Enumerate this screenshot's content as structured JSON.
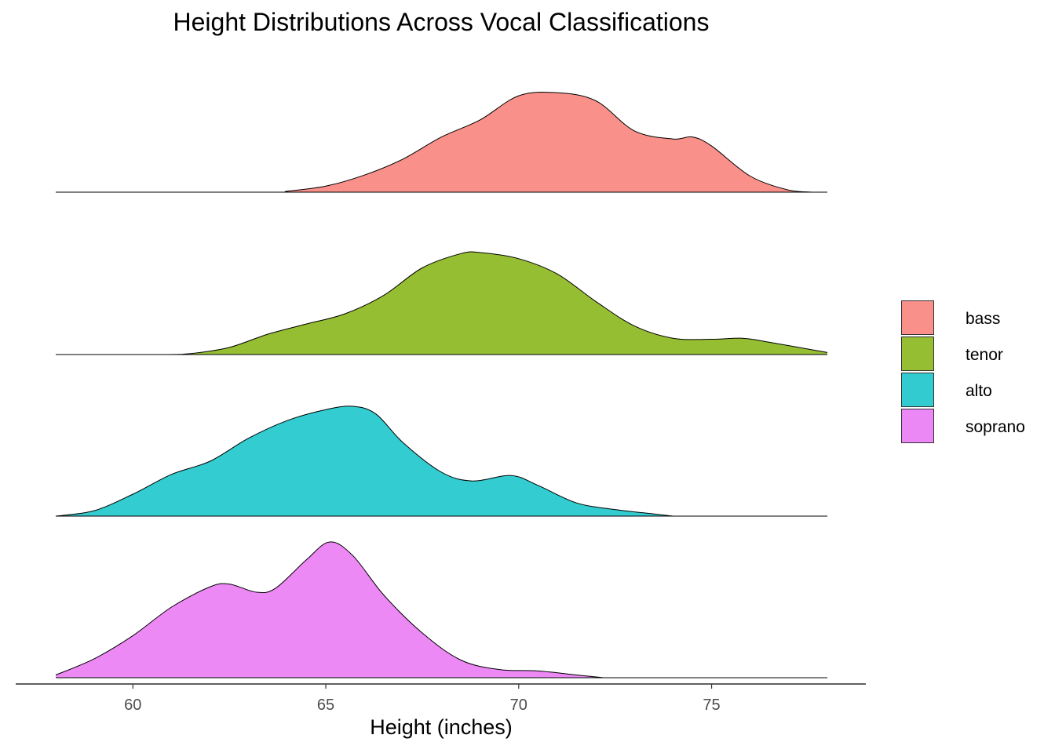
{
  "chart_data": {
    "type": "ridgeline",
    "title": "Height Distributions Across Vocal Classifications",
    "xlabel": "Height (inches)",
    "ylabel": "",
    "xlim": [
      58,
      78
    ],
    "x_ticks": [
      60,
      65,
      70,
      75
    ],
    "grid": false,
    "legend_position": "right",
    "series": [
      {
        "name": "bass",
        "color": "#F8766D",
        "points": [
          [
            58,
            0
          ],
          [
            63.5,
            0
          ],
          [
            64,
            0.01
          ],
          [
            65,
            0.06
          ],
          [
            66,
            0.17
          ],
          [
            67,
            0.33
          ],
          [
            68,
            0.55
          ],
          [
            69,
            0.72
          ],
          [
            70,
            0.96
          ],
          [
            71,
            0.99
          ],
          [
            72,
            0.91
          ],
          [
            73,
            0.61
          ],
          [
            74,
            0.53
          ],
          [
            74.5,
            0.55
          ],
          [
            75,
            0.46
          ],
          [
            76,
            0.16
          ],
          [
            77,
            0.02
          ],
          [
            77.6,
            0
          ]
        ]
      },
      {
        "name": "tenor",
        "color": "#7CAE00",
        "points": [
          [
            58,
            0
          ],
          [
            60.7,
            0
          ],
          [
            61.5,
            0.01
          ],
          [
            62.5,
            0.07
          ],
          [
            63.5,
            0.2
          ],
          [
            64.5,
            0.3
          ],
          [
            65.5,
            0.4
          ],
          [
            66.5,
            0.58
          ],
          [
            67.5,
            0.85
          ],
          [
            68.5,
            0.99
          ],
          [
            69,
            1.0
          ],
          [
            70,
            0.94
          ],
          [
            71,
            0.79
          ],
          [
            72,
            0.52
          ],
          [
            73,
            0.28
          ],
          [
            74,
            0.16
          ],
          [
            75,
            0.15
          ],
          [
            75.8,
            0.16
          ],
          [
            76.5,
            0.12
          ],
          [
            78,
            0.02
          ]
        ]
      },
      {
        "name": "alto",
        "color": "#00BFC4",
        "points": [
          [
            58,
            0
          ],
          [
            59,
            0.05
          ],
          [
            60,
            0.2
          ],
          [
            61,
            0.38
          ],
          [
            62,
            0.5
          ],
          [
            63,
            0.71
          ],
          [
            64,
            0.87
          ],
          [
            65,
            0.97
          ],
          [
            65.7,
            1.0
          ],
          [
            66.3,
            0.93
          ],
          [
            67,
            0.67
          ],
          [
            68,
            0.4
          ],
          [
            68.8,
            0.32
          ],
          [
            69.8,
            0.37
          ],
          [
            70.5,
            0.28
          ],
          [
            71.5,
            0.12
          ],
          [
            72.5,
            0.06
          ],
          [
            73.5,
            0.02
          ],
          [
            74,
            0
          ]
        ]
      },
      {
        "name": "soprano",
        "color": "#E76BF3",
        "points": [
          [
            58,
            0.02
          ],
          [
            59,
            0.14
          ],
          [
            60,
            0.31
          ],
          [
            61,
            0.52
          ],
          [
            62,
            0.67
          ],
          [
            62.5,
            0.69
          ],
          [
            63.2,
            0.63
          ],
          [
            63.7,
            0.66
          ],
          [
            64.5,
            0.87
          ],
          [
            65.1,
            1.0
          ],
          [
            65.7,
            0.9
          ],
          [
            66.5,
            0.61
          ],
          [
            67.5,
            0.33
          ],
          [
            68.5,
            0.13
          ],
          [
            69.5,
            0.06
          ],
          [
            70.5,
            0.05
          ],
          [
            71.5,
            0.02
          ],
          [
            72.2,
            0
          ]
        ]
      }
    ]
  }
}
